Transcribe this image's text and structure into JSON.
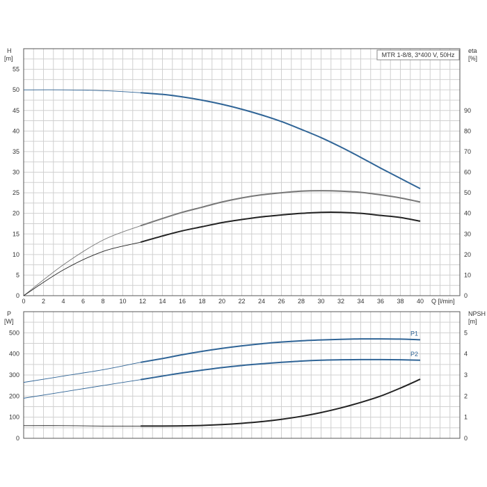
{
  "chart_data": [
    {
      "type": "line",
      "legend_label": "MTR 1-8/8, 3*400 V, 50Hz",
      "xlabel": "Q [l/min]",
      "ylabel_left_name": "H",
      "ylabel_left_unit": "[m]",
      "ylabel_right_name": "eta",
      "ylabel_right_unit": "[%]",
      "xlim": [
        0,
        40
      ],
      "ylim_left": [
        0,
        60
      ],
      "ylim_right": [
        0,
        120
      ],
      "x_ticks": [
        0,
        2,
        4,
        6,
        8,
        10,
        12,
        14,
        16,
        18,
        20,
        22,
        24,
        26,
        28,
        30,
        32,
        34,
        36,
        38,
        40
      ],
      "y_ticks_left": [
        0,
        5,
        10,
        15,
        20,
        25,
        30,
        35,
        40,
        45,
        50,
        55
      ],
      "y_ticks_right": [
        0,
        10,
        20,
        30,
        40,
        50,
        60,
        70,
        80,
        90
      ],
      "grid": true,
      "series": [
        {
          "axis": "left",
          "color": "#2f6496",
          "x": [
            0,
            4,
            8,
            11.8,
            14,
            16,
            18,
            20,
            22,
            24,
            26,
            28,
            30,
            32,
            34,
            36,
            38,
            40
          ],
          "values": [
            50.0,
            50.0,
            49.8,
            49.3,
            48.9,
            48.3,
            47.5,
            46.5,
            45.3,
            43.9,
            42.3,
            40.4,
            38.4,
            36.1,
            33.6,
            31.0,
            28.5,
            26.0
          ]
        },
        {
          "axis": "right",
          "color": "#777777",
          "x": [
            0,
            4,
            8,
            11.8,
            14,
            16,
            18,
            20,
            22,
            24,
            26,
            28,
            30,
            32,
            34,
            36,
            38,
            40
          ],
          "values": [
            0,
            15.0,
            27.0,
            34.0,
            37.5,
            40.5,
            43.0,
            45.5,
            47.5,
            49.0,
            50.0,
            50.8,
            51.0,
            50.8,
            50.2,
            49.0,
            47.5,
            45.5
          ]
        },
        {
          "axis": "right",
          "color": "#222222",
          "x": [
            0,
            4,
            8,
            11.8,
            14,
            16,
            18,
            20,
            22,
            24,
            26,
            28,
            30,
            32,
            34,
            36,
            38,
            40
          ],
          "values": [
            0,
            12.5,
            21.5,
            26.0,
            29.0,
            31.5,
            33.5,
            35.5,
            37.0,
            38.3,
            39.2,
            40.0,
            40.5,
            40.5,
            40.0,
            39.0,
            38.0,
            36.2
          ]
        }
      ]
    },
    {
      "type": "line",
      "xlabel": "",
      "ylabel_left_name": "P",
      "ylabel_left_unit": "[W]",
      "ylabel_right_name": "NPSH",
      "ylabel_right_unit": "[m]",
      "xlim": [
        0,
        40
      ],
      "ylim_left": [
        0,
        600
      ],
      "ylim_right": [
        0,
        6
      ],
      "y_ticks_left": [
        0,
        100,
        200,
        300,
        400,
        500
      ],
      "y_ticks_right": [
        0,
        1,
        2,
        3,
        4,
        5
      ],
      "grid": true,
      "series": [
        {
          "name": "P1",
          "axis": "left",
          "color": "#2f6496",
          "x": [
            0,
            4,
            8,
            11.8,
            14,
            16,
            18,
            20,
            22,
            24,
            26,
            28,
            30,
            32,
            34,
            36,
            38,
            40
          ],
          "values": [
            265,
            295,
            325,
            360,
            378,
            396,
            412,
            426,
            438,
            448,
            456,
            462,
            466,
            469,
            471,
            471,
            470,
            467
          ]
        },
        {
          "name": "P2",
          "axis": "left",
          "color": "#2f6496",
          "x": [
            0,
            4,
            8,
            11.8,
            14,
            16,
            18,
            20,
            22,
            24,
            26,
            28,
            30,
            32,
            34,
            36,
            38,
            40
          ],
          "values": [
            190,
            220,
            250,
            278,
            295,
            310,
            323,
            335,
            345,
            353,
            360,
            366,
            370,
            372,
            373,
            373,
            372,
            370
          ]
        },
        {
          "axis": "right",
          "color": "#222222",
          "x": [
            0,
            4,
            8,
            11.8,
            14,
            16,
            18,
            20,
            22,
            24,
            26,
            28,
            30,
            32,
            34,
            36,
            38,
            40
          ],
          "values": [
            0.6,
            0.6,
            0.58,
            0.58,
            0.58,
            0.59,
            0.61,
            0.65,
            0.71,
            0.79,
            0.9,
            1.04,
            1.22,
            1.44,
            1.7,
            2.0,
            2.38,
            2.8
          ]
        }
      ]
    }
  ]
}
